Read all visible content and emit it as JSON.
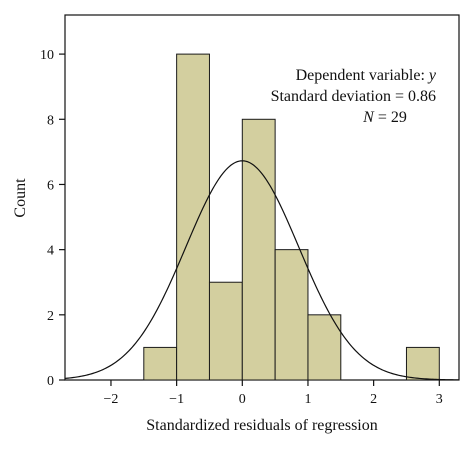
{
  "chart_data": {
    "type": "bar",
    "subtype": "histogram",
    "bin_edges": [
      -1.5,
      -1.0,
      -0.5,
      0.0,
      0.5,
      1.0,
      1.5,
      2.5,
      3.0
    ],
    "bins": [
      {
        "from": -1.5,
        "to": -1.0,
        "count": 1
      },
      {
        "from": -1.0,
        "to": -0.5,
        "count": 10
      },
      {
        "from": -0.5,
        "to": 0.0,
        "count": 3
      },
      {
        "from": 0.0,
        "to": 0.5,
        "count": 8
      },
      {
        "from": 0.5,
        "to": 1.0,
        "count": 4
      },
      {
        "from": 1.0,
        "to": 1.5,
        "count": 2
      },
      {
        "from": 2.5,
        "to": 3.0,
        "count": 1
      }
    ],
    "normal_curve": {
      "mean": 0.0,
      "sd": 0.86,
      "n": 29,
      "bin_width": 0.5
    },
    "xlabel": "Standardized residuals of regression",
    "ylabel": "Count",
    "xlim": [
      -2.7,
      3.3
    ],
    "ylim": [
      0,
      11.2
    ],
    "xticks": [
      -2,
      -1,
      0,
      1,
      2,
      3
    ],
    "yticks": [
      0,
      2,
      4,
      6,
      8,
      10
    ],
    "xtick_labels": [
      "−2",
      "−1",
      "0",
      "1",
      "2",
      "3"
    ],
    "ytick_labels": [
      "0",
      "2",
      "4",
      "6",
      "8",
      "10"
    ],
    "grid": false,
    "legend": "none",
    "annotation": {
      "line1_prefix": "Dependent variable: ",
      "line1_var": "y",
      "line2": "Standard deviation = 0.86",
      "line3_var": "N",
      "line3_suffix": " = 29"
    },
    "colors": {
      "bar_fill": "#d3cf9f",
      "bar_stroke": "#1a1a1a",
      "curve": "#111111",
      "axis": "#111111"
    }
  }
}
